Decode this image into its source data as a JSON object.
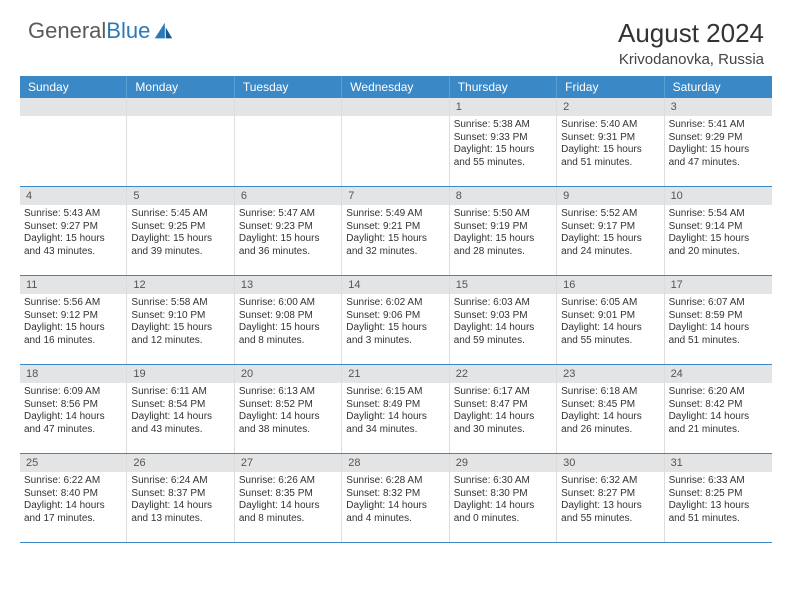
{
  "brand": {
    "name_gray": "General",
    "name_blue": "Blue"
  },
  "title": "August 2024",
  "location": "Krivodanovka, Russia",
  "colors": {
    "header_bg": "#3a88c6",
    "header_text": "#ffffff",
    "daynum_bg": "#e2e4e6",
    "border_week": "#3a88c6",
    "text": "#333333"
  },
  "days_of_week": [
    "Sunday",
    "Monday",
    "Tuesday",
    "Wednesday",
    "Thursday",
    "Friday",
    "Saturday"
  ],
  "weeks": [
    [
      {
        "n": "",
        "sunrise": "",
        "sunset": "",
        "daylight1": "",
        "daylight2": ""
      },
      {
        "n": "",
        "sunrise": "",
        "sunset": "",
        "daylight1": "",
        "daylight2": ""
      },
      {
        "n": "",
        "sunrise": "",
        "sunset": "",
        "daylight1": "",
        "daylight2": ""
      },
      {
        "n": "",
        "sunrise": "",
        "sunset": "",
        "daylight1": "",
        "daylight2": ""
      },
      {
        "n": "1",
        "sunrise": "Sunrise: 5:38 AM",
        "sunset": "Sunset: 9:33 PM",
        "daylight1": "Daylight: 15 hours",
        "daylight2": "and 55 minutes."
      },
      {
        "n": "2",
        "sunrise": "Sunrise: 5:40 AM",
        "sunset": "Sunset: 9:31 PM",
        "daylight1": "Daylight: 15 hours",
        "daylight2": "and 51 minutes."
      },
      {
        "n": "3",
        "sunrise": "Sunrise: 5:41 AM",
        "sunset": "Sunset: 9:29 PM",
        "daylight1": "Daylight: 15 hours",
        "daylight2": "and 47 minutes."
      }
    ],
    [
      {
        "n": "4",
        "sunrise": "Sunrise: 5:43 AM",
        "sunset": "Sunset: 9:27 PM",
        "daylight1": "Daylight: 15 hours",
        "daylight2": "and 43 minutes."
      },
      {
        "n": "5",
        "sunrise": "Sunrise: 5:45 AM",
        "sunset": "Sunset: 9:25 PM",
        "daylight1": "Daylight: 15 hours",
        "daylight2": "and 39 minutes."
      },
      {
        "n": "6",
        "sunrise": "Sunrise: 5:47 AM",
        "sunset": "Sunset: 9:23 PM",
        "daylight1": "Daylight: 15 hours",
        "daylight2": "and 36 minutes."
      },
      {
        "n": "7",
        "sunrise": "Sunrise: 5:49 AM",
        "sunset": "Sunset: 9:21 PM",
        "daylight1": "Daylight: 15 hours",
        "daylight2": "and 32 minutes."
      },
      {
        "n": "8",
        "sunrise": "Sunrise: 5:50 AM",
        "sunset": "Sunset: 9:19 PM",
        "daylight1": "Daylight: 15 hours",
        "daylight2": "and 28 minutes."
      },
      {
        "n": "9",
        "sunrise": "Sunrise: 5:52 AM",
        "sunset": "Sunset: 9:17 PM",
        "daylight1": "Daylight: 15 hours",
        "daylight2": "and 24 minutes."
      },
      {
        "n": "10",
        "sunrise": "Sunrise: 5:54 AM",
        "sunset": "Sunset: 9:14 PM",
        "daylight1": "Daylight: 15 hours",
        "daylight2": "and 20 minutes."
      }
    ],
    [
      {
        "n": "11",
        "sunrise": "Sunrise: 5:56 AM",
        "sunset": "Sunset: 9:12 PM",
        "daylight1": "Daylight: 15 hours",
        "daylight2": "and 16 minutes."
      },
      {
        "n": "12",
        "sunrise": "Sunrise: 5:58 AM",
        "sunset": "Sunset: 9:10 PM",
        "daylight1": "Daylight: 15 hours",
        "daylight2": "and 12 minutes."
      },
      {
        "n": "13",
        "sunrise": "Sunrise: 6:00 AM",
        "sunset": "Sunset: 9:08 PM",
        "daylight1": "Daylight: 15 hours",
        "daylight2": "and 8 minutes."
      },
      {
        "n": "14",
        "sunrise": "Sunrise: 6:02 AM",
        "sunset": "Sunset: 9:06 PM",
        "daylight1": "Daylight: 15 hours",
        "daylight2": "and 3 minutes."
      },
      {
        "n": "15",
        "sunrise": "Sunrise: 6:03 AM",
        "sunset": "Sunset: 9:03 PM",
        "daylight1": "Daylight: 14 hours",
        "daylight2": "and 59 minutes."
      },
      {
        "n": "16",
        "sunrise": "Sunrise: 6:05 AM",
        "sunset": "Sunset: 9:01 PM",
        "daylight1": "Daylight: 14 hours",
        "daylight2": "and 55 minutes."
      },
      {
        "n": "17",
        "sunrise": "Sunrise: 6:07 AM",
        "sunset": "Sunset: 8:59 PM",
        "daylight1": "Daylight: 14 hours",
        "daylight2": "and 51 minutes."
      }
    ],
    [
      {
        "n": "18",
        "sunrise": "Sunrise: 6:09 AM",
        "sunset": "Sunset: 8:56 PM",
        "daylight1": "Daylight: 14 hours",
        "daylight2": "and 47 minutes."
      },
      {
        "n": "19",
        "sunrise": "Sunrise: 6:11 AM",
        "sunset": "Sunset: 8:54 PM",
        "daylight1": "Daylight: 14 hours",
        "daylight2": "and 43 minutes."
      },
      {
        "n": "20",
        "sunrise": "Sunrise: 6:13 AM",
        "sunset": "Sunset: 8:52 PM",
        "daylight1": "Daylight: 14 hours",
        "daylight2": "and 38 minutes."
      },
      {
        "n": "21",
        "sunrise": "Sunrise: 6:15 AM",
        "sunset": "Sunset: 8:49 PM",
        "daylight1": "Daylight: 14 hours",
        "daylight2": "and 34 minutes."
      },
      {
        "n": "22",
        "sunrise": "Sunrise: 6:17 AM",
        "sunset": "Sunset: 8:47 PM",
        "daylight1": "Daylight: 14 hours",
        "daylight2": "and 30 minutes."
      },
      {
        "n": "23",
        "sunrise": "Sunrise: 6:18 AM",
        "sunset": "Sunset: 8:45 PM",
        "daylight1": "Daylight: 14 hours",
        "daylight2": "and 26 minutes."
      },
      {
        "n": "24",
        "sunrise": "Sunrise: 6:20 AM",
        "sunset": "Sunset: 8:42 PM",
        "daylight1": "Daylight: 14 hours",
        "daylight2": "and 21 minutes."
      }
    ],
    [
      {
        "n": "25",
        "sunrise": "Sunrise: 6:22 AM",
        "sunset": "Sunset: 8:40 PM",
        "daylight1": "Daylight: 14 hours",
        "daylight2": "and 17 minutes."
      },
      {
        "n": "26",
        "sunrise": "Sunrise: 6:24 AM",
        "sunset": "Sunset: 8:37 PM",
        "daylight1": "Daylight: 14 hours",
        "daylight2": "and 13 minutes."
      },
      {
        "n": "27",
        "sunrise": "Sunrise: 6:26 AM",
        "sunset": "Sunset: 8:35 PM",
        "daylight1": "Daylight: 14 hours",
        "daylight2": "and 8 minutes."
      },
      {
        "n": "28",
        "sunrise": "Sunrise: 6:28 AM",
        "sunset": "Sunset: 8:32 PM",
        "daylight1": "Daylight: 14 hours",
        "daylight2": "and 4 minutes."
      },
      {
        "n": "29",
        "sunrise": "Sunrise: 6:30 AM",
        "sunset": "Sunset: 8:30 PM",
        "daylight1": "Daylight: 14 hours",
        "daylight2": "and 0 minutes."
      },
      {
        "n": "30",
        "sunrise": "Sunrise: 6:32 AM",
        "sunset": "Sunset: 8:27 PM",
        "daylight1": "Daylight: 13 hours",
        "daylight2": "and 55 minutes."
      },
      {
        "n": "31",
        "sunrise": "Sunrise: 6:33 AM",
        "sunset": "Sunset: 8:25 PM",
        "daylight1": "Daylight: 13 hours",
        "daylight2": "and 51 minutes."
      }
    ]
  ]
}
